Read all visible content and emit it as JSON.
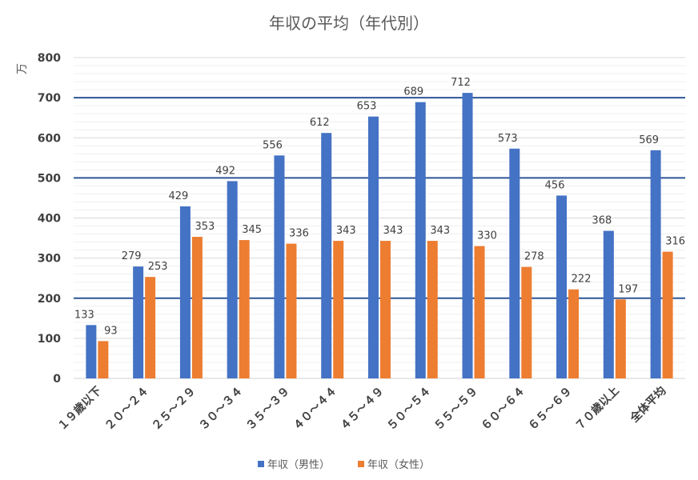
{
  "chart_data": {
    "type": "bar",
    "title": "年収の平均（年代別）",
    "ylabel": "万",
    "xlabel": "",
    "ylim": [
      0,
      800
    ],
    "yticks": [
      0,
      100,
      200,
      300,
      400,
      500,
      600,
      700,
      800
    ],
    "highlight_gridlines": [
      200,
      500,
      700
    ],
    "categories": [
      "１９歳以下",
      "２０～２４",
      "２５～２９",
      "３０～３４",
      "３５～３９",
      "４０～４４",
      "４５～４９",
      "５０～５４",
      "５５～５９",
      "６０～６４",
      "６５～６９",
      "７０歳以上",
      "全体平均"
    ],
    "series": [
      {
        "name": "年収（男性）",
        "color": "#4472c4",
        "values": [
          133,
          279,
          429,
          492,
          556,
          612,
          653,
          689,
          712,
          573,
          456,
          368,
          569
        ]
      },
      {
        "name": "年収（女性）",
        "color": "#ed7d31",
        "values": [
          93,
          253,
          353,
          345,
          336,
          343,
          343,
          343,
          330,
          278,
          222,
          197,
          316
        ]
      }
    ],
    "legend_position": "bottom",
    "grid": true
  }
}
